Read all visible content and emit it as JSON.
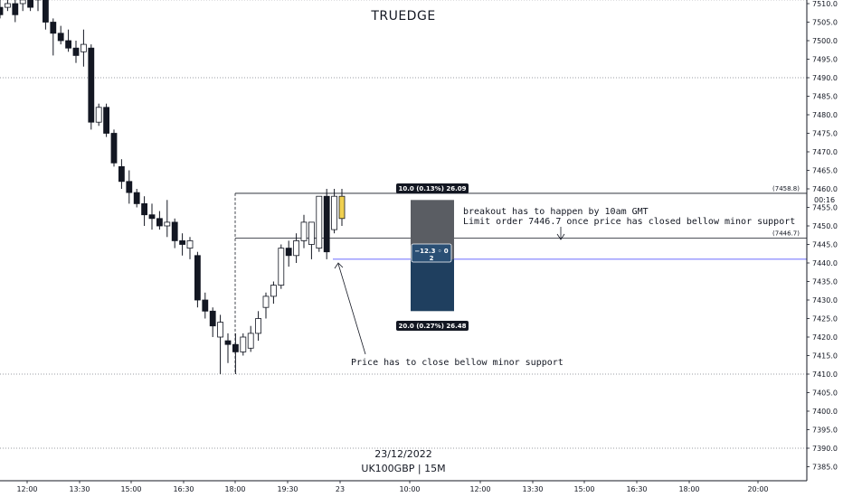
{
  "watermark": {
    "title": "TRUEDGE",
    "date": "23/12/2022",
    "symbol": "UK100GBP | 15M"
  },
  "colors": {
    "up_fill": "#ffffff",
    "down_fill": "#131722",
    "candle_border": "#131722",
    "live_candle": "#f0d050",
    "stop_zone": "#5a5d63",
    "target_zone": "#1f3f5f",
    "entry_line": "#3a3aff",
    "dotted_level": "#7a7d85"
  },
  "chart_data": {
    "type": "candlestick",
    "ylim": [
      7382,
      7512
    ],
    "y_ticks": [
      "7510.0",
      "7505.0",
      "7500.0",
      "7495.0",
      "7490.0",
      "7485.0",
      "7480.0",
      "7475.0",
      "7470.0",
      "7465.0",
      "7460.0",
      "7455.0",
      "7450.0",
      "7445.0",
      "7440.0",
      "7435.0",
      "7430.0",
      "7425.0",
      "7420.0",
      "7415.0",
      "7410.0",
      "7405.0",
      "7400.0",
      "7395.0",
      "7390.0",
      "7385.0"
    ],
    "x_ticks": [
      "12:00",
      "13:30",
      "15:00",
      "16:30",
      "18:00",
      "19:30",
      "23",
      "10:00",
      "12:00",
      "13:30",
      "15:00",
      "16:30",
      "18:00",
      "20:00"
    ],
    "time_label": "00:16",
    "candles": [
      {
        "o": 7509,
        "h": 7513,
        "l": 7506,
        "c": 7507
      },
      {
        "o": 7509,
        "h": 7512,
        "l": 7508,
        "c": 7510
      },
      {
        "o": 7510,
        "h": 7512,
        "l": 7505,
        "c": 7507
      },
      {
        "o": 7510,
        "h": 7512,
        "l": 7508,
        "c": 7511
      },
      {
        "o": 7513,
        "h": 7515,
        "l": 7508,
        "c": 7509
      },
      {
        "o": 7511,
        "h": 7514,
        "l": 7508,
        "c": 7512
      },
      {
        "o": 7512,
        "h": 7513,
        "l": 7503,
        "c": 7505
      },
      {
        "o": 7505,
        "h": 7506,
        "l": 7496,
        "c": 7502
      },
      {
        "o": 7502,
        "h": 7504,
        "l": 7499,
        "c": 7500
      },
      {
        "o": 7500,
        "h": 7503,
        "l": 7497,
        "c": 7498
      },
      {
        "o": 7498,
        "h": 7500,
        "l": 7494,
        "c": 7496
      },
      {
        "o": 7497,
        "h": 7503,
        "l": 7493,
        "c": 7499
      },
      {
        "o": 7498,
        "h": 7499,
        "l": 7476,
        "c": 7478
      },
      {
        "o": 7478,
        "h": 7483,
        "l": 7477,
        "c": 7482
      },
      {
        "o": 7482,
        "h": 7483,
        "l": 7474,
        "c": 7475
      },
      {
        "o": 7475,
        "h": 7476,
        "l": 7466,
        "c": 7467
      },
      {
        "o": 7466,
        "h": 7468,
        "l": 7460,
        "c": 7462
      },
      {
        "o": 7462,
        "h": 7465,
        "l": 7456,
        "c": 7459
      },
      {
        "o": 7459,
        "h": 7460,
        "l": 7455,
        "c": 7456
      },
      {
        "o": 7456,
        "h": 7458,
        "l": 7450,
        "c": 7453
      },
      {
        "o": 7453,
        "h": 7456,
        "l": 7449,
        "c": 7452
      },
      {
        "o": 7452,
        "h": 7454,
        "l": 7449,
        "c": 7450
      },
      {
        "o": 7450,
        "h": 7457,
        "l": 7447,
        "c": 7451
      },
      {
        "o": 7451,
        "h": 7452,
        "l": 7444,
        "c": 7446
      },
      {
        "o": 7446,
        "h": 7448,
        "l": 7442,
        "c": 7445
      },
      {
        "o": 7444,
        "h": 7447,
        "l": 7441,
        "c": 7446
      },
      {
        "o": 7442,
        "h": 7443,
        "l": 7428,
        "c": 7430
      },
      {
        "o": 7430,
        "h": 7432,
        "l": 7425,
        "c": 7427
      },
      {
        "o": 7427,
        "h": 7428,
        "l": 7420,
        "c": 7423
      },
      {
        "o": 7420,
        "h": 7426,
        "l": 7410,
        "c": 7424
      },
      {
        "o": 7419,
        "h": 7421,
        "l": 7413,
        "c": 7418
      },
      {
        "o": 7418,
        "h": 7421,
        "l": 7410,
        "c": 7416
      },
      {
        "o": 7416,
        "h": 7421,
        "l": 7415,
        "c": 7420
      },
      {
        "o": 7417,
        "h": 7423,
        "l": 7416,
        "c": 7421
      },
      {
        "o": 7421,
        "h": 7427,
        "l": 7419,
        "c": 7425
      },
      {
        "o": 7428,
        "h": 7432,
        "l": 7425,
        "c": 7431
      },
      {
        "o": 7431,
        "h": 7435,
        "l": 7429,
        "c": 7434
      },
      {
        "o": 7434,
        "h": 7445,
        "l": 7433,
        "c": 7444
      },
      {
        "o": 7444,
        "h": 7446,
        "l": 7439,
        "c": 7442
      },
      {
        "o": 7442,
        "h": 7448,
        "l": 7440,
        "c": 7446
      },
      {
        "o": 7446,
        "h": 7453,
        "l": 7444,
        "c": 7451
      },
      {
        "o": 7445,
        "h": 7451,
        "l": 7441,
        "c": 7451
      },
      {
        "o": 7444,
        "h": 7458,
        "l": 7443,
        "c": 7458
      },
      {
        "o": 7458,
        "h": 7460,
        "l": 7441,
        "c": 7443
      },
      {
        "o": 7449,
        "h": 7460,
        "l": 7448,
        "c": 7458
      },
      {
        "o": 7452,
        "h": 7460,
        "l": 7450,
        "c": 7458
      }
    ],
    "levels": [
      {
        "name": "upper-dotted-level",
        "value": 7511
      },
      {
        "name": "resistance-dotted-level",
        "value": 7490
      },
      {
        "name": "support-dotted-level",
        "value": 7410
      },
      {
        "name": "bottom-dotted-level",
        "value": 7390
      }
    ],
    "horizontal_lines": [
      {
        "label": "(7458.8)",
        "value": 7458.8
      },
      {
        "label": "(7446.7)",
        "value": 7446.7
      }
    ],
    "entry_line": 7441,
    "position": {
      "top_label": "10.0 (0.13%) 26.09",
      "bottom_label": "20.0 (0.27%) 26.48",
      "center_label_1": "−12.3 ◦ 0",
      "center_label_2": "2",
      "stop_top": 7457,
      "target_bottom": 7427
    },
    "annotations": [
      "breakout has to happen by 10am GMT",
      "Limit order 7446.7 once price has closed bellow minor support",
      "Price has to close bellow minor support"
    ]
  }
}
